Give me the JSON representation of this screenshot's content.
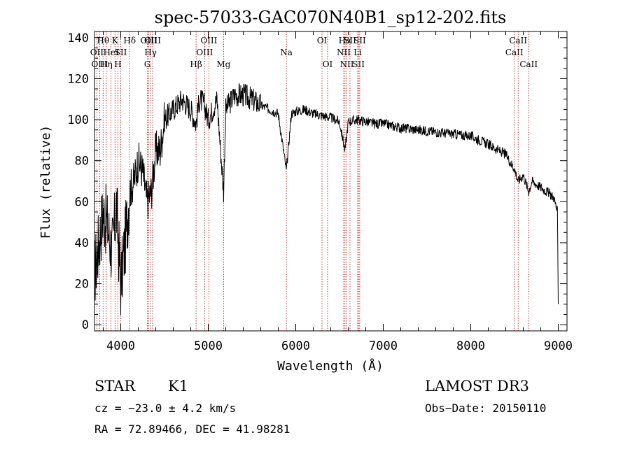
{
  "chart_data": {
    "type": "line",
    "title": "spec-57033-GAC070N40B1_sp12-202.fits",
    "xlabel": "Wavelength (Å)",
    "ylabel": "Flux (relative)",
    "xlim": [
      3700,
      9100
    ],
    "ylim": [
      -3,
      143
    ],
    "xticks": [
      4000,
      5000,
      6000,
      7000,
      8000,
      9000
    ],
    "yticks": [
      0,
      20,
      40,
      60,
      80,
      100,
      120,
      140
    ],
    "line_color": "#000000",
    "marker_color": "#cc0000",
    "grid": false,
    "legend": "none",
    "series": [
      {
        "x": [
          3700,
          3750,
          3800,
          3850,
          3900,
          3950,
          4000,
          4050,
          4100,
          4150,
          4200,
          4250,
          4300,
          4350,
          4400,
          4450,
          4500,
          4600,
          4700,
          4800,
          4861,
          4900,
          4950,
          5000,
          5100,
          5175,
          5200,
          5300,
          5400,
          5500,
          5600,
          5700,
          5800,
          5893,
          5950,
          6000,
          6100,
          6200,
          6300,
          6400,
          6500,
          6563,
          6600,
          6700,
          6800,
          6900,
          7000,
          7200,
          7400,
          7600,
          7800,
          8000,
          8200,
          8400,
          8500,
          8542,
          8600,
          8662,
          8700,
          8800,
          8900,
          8950,
          8990,
          9000
        ],
        "y": [
          25,
          40,
          55,
          48,
          35,
          58,
          20,
          40,
          65,
          70,
          80,
          75,
          60,
          65,
          85,
          85,
          100,
          105,
          110,
          105,
          98,
          110,
          108,
          100,
          110,
          65,
          105,
          112,
          112,
          110,
          107,
          105,
          103,
          75,
          103,
          104,
          105,
          103,
          102,
          101,
          99,
          85,
          99,
          100,
          99,
          98,
          98,
          96,
          95,
          94,
          93,
          92,
          88,
          83,
          76,
          70,
          73,
          65,
          70,
          67,
          64,
          62,
          55,
          10
        ]
      }
    ],
    "lines": [
      {
        "name": "OII",
        "x": 3727,
        "row": 2
      },
      {
        "name": "OIII",
        "x": 3760,
        "row": 3
      },
      {
        "name": "Hθ",
        "x": 3798,
        "row": 1
      },
      {
        "name": "Hη",
        "x": 3835,
        "row": 3
      },
      {
        "name": "HeI",
        "x": 3889,
        "row": 2
      },
      {
        "name": "K",
        "x": 3934,
        "row": 1
      },
      {
        "name": "H",
        "x": 3968,
        "row": 3
      },
      {
        "name": "SII",
        "x": 4000,
        "row": 2
      },
      {
        "name": "Hδ",
        "x": 4102,
        "row": 1
      },
      {
        "name": "OIII",
        "x": 4320,
        "row": 1
      },
      {
        "name": "Hγ",
        "x": 4341,
        "row": 2
      },
      {
        "name": "G",
        "x": 4304,
        "row": 3
      },
      {
        "name": "OIII",
        "x": 4364,
        "row": 1
      },
      {
        "name": "Hβ",
        "x": 4861,
        "row": 3
      },
      {
        "name": "OIII",
        "x": 4959,
        "row": 2
      },
      {
        "name": "OIII",
        "x": 5007,
        "row": 1
      },
      {
        "name": "Mg",
        "x": 5175,
        "row": 3
      },
      {
        "name": "Na",
        "x": 5893,
        "row": 2
      },
      {
        "name": "OI",
        "x": 6300,
        "row": 1
      },
      {
        "name": "OI",
        "x": 6364,
        "row": 3
      },
      {
        "name": "NII",
        "x": 6548,
        "row": 2
      },
      {
        "name": "Hα",
        "x": 6563,
        "row": 1
      },
      {
        "name": "NII",
        "x": 6584,
        "row": 3
      },
      {
        "name": "SII",
        "x": 6620,
        "row": 1
      },
      {
        "name": "Li",
        "x": 6708,
        "row": 2
      },
      {
        "name": "SII",
        "x": 6717,
        "row": 3
      },
      {
        "name": "SII",
        "x": 6731,
        "row": 1
      },
      {
        "name": "CaII",
        "x": 8498,
        "row": 2
      },
      {
        "name": "CaII",
        "x": 8542,
        "row": 1
      },
      {
        "name": "CaII",
        "x": 8662,
        "row": 3
      }
    ]
  },
  "info": {
    "class": "STAR",
    "subclass": "K1",
    "survey": "LAMOST DR3",
    "cz": "cz = −23.0 ± 4.2 km/s",
    "obs_date": "Obs−Date: 20150110",
    "radec": "RA =  72.89466, DEC =  41.98281"
  }
}
